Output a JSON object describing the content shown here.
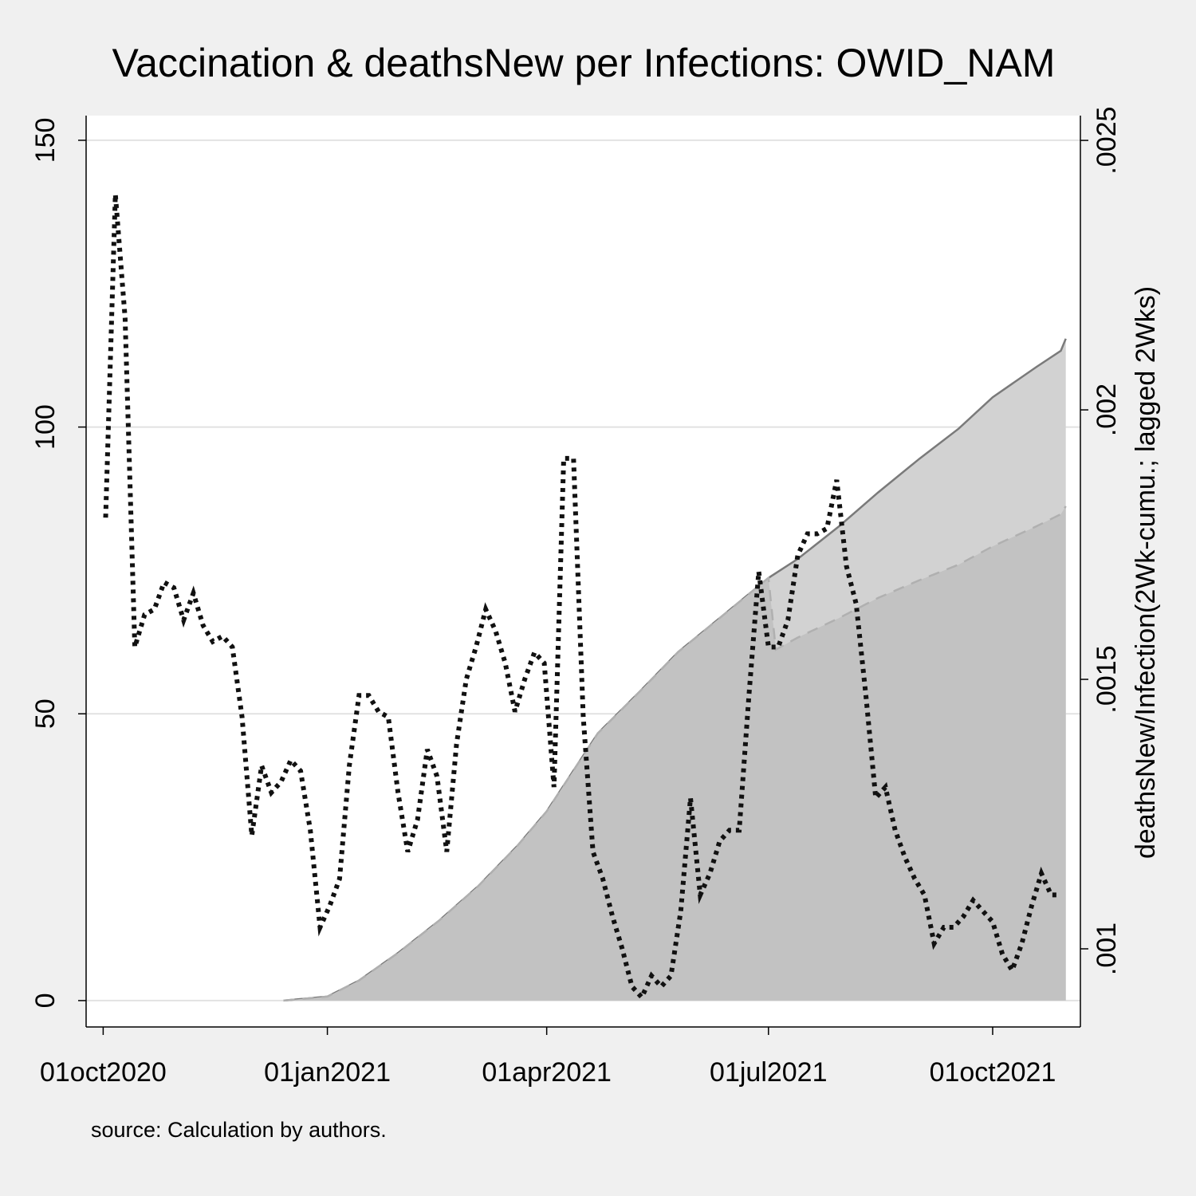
{
  "chart_data": {
    "type": "line",
    "title": "Vaccination & deathsNew per Infections: OWID_NAM",
    "y2_label": "deathsNew/Infection(2Wk-cumu.; lagged 2Wks)",
    "note": "source: Calculation by authors.",
    "xlim": [
      "2020-09-24",
      "2021-11-06"
    ],
    "xticks": [
      {
        "value": "2020-10-01",
        "label": "01oct2020"
      },
      {
        "value": "2021-01-01",
        "label": "01jan2021"
      },
      {
        "value": "2021-04-01",
        "label": "01apr2021"
      },
      {
        "value": "2021-07-01",
        "label": "01jul2021"
      },
      {
        "value": "2021-10-01",
        "label": "01oct2021"
      }
    ],
    "ylim": [
      -4.6,
      154.3
    ],
    "yticks": [
      0,
      50,
      100,
      150
    ],
    "y2lim": [
      0.000855,
      0.002546
    ],
    "y2ticks": [
      {
        "value": 0.001,
        "label": ".001"
      },
      {
        "value": 0.0015,
        "label": ".0015"
      },
      {
        "value": 0.002,
        "label": ".002"
      },
      {
        "value": 0.0025,
        "label": ".0025"
      }
    ],
    "grid": true,
    "series": [
      {
        "area": true,
        "fill": "#d2d2d2",
        "color": "#7a7a7a",
        "style": "solid",
        "x": [
          "2020-12-14",
          "2021-01-01",
          "2021-01-14",
          "2021-01-30",
          "2021-02-16",
          "2021-03-04",
          "2021-03-20",
          "2021-04-01",
          "2021-04-22",
          "2021-05-09",
          "2021-05-25",
          "2021-06-11",
          "2021-07-01",
          "2021-07-13",
          "2021-07-30",
          "2021-08-15",
          "2021-09-01",
          "2021-09-17",
          "2021-10-01",
          "2021-10-19",
          "2021-10-29",
          "2021-10-31"
        ],
        "values": [
          0,
          0.7,
          3.5,
          8.3,
          14,
          20,
          27,
          33,
          46.6,
          53.8,
          60.8,
          66.7,
          73.7,
          77,
          82.7,
          88.6,
          94.5,
          99.7,
          105.2,
          110.5,
          113.3,
          115.4
        ]
      },
      {
        "area": true,
        "fill": "#c2c2c2",
        "color": "#b0b0b0",
        "style": "dashed",
        "x": [
          "2020-12-14",
          "2021-01-01",
          "2021-01-14",
          "2021-01-30",
          "2021-02-16",
          "2021-03-04",
          "2021-03-20",
          "2021-04-01",
          "2021-04-22",
          "2021-05-09",
          "2021-05-25",
          "2021-06-11",
          "2021-07-01",
          "2021-07-04",
          "2021-07-13",
          "2021-07-30",
          "2021-08-15",
          "2021-09-01",
          "2021-09-17",
          "2021-10-01",
          "2021-10-19",
          "2021-10-29",
          "2021-10-31"
        ],
        "values": [
          0,
          0.7,
          3.5,
          8.3,
          14,
          20,
          27,
          33,
          46.6,
          53.8,
          60.8,
          66.7,
          73.7,
          61.2,
          63.3,
          66.7,
          70.2,
          73.3,
          76.0,
          79.2,
          82.7,
          84.8,
          86.2
        ]
      },
      {
        "area": false,
        "color": "#111111",
        "style": "dotted",
        "axis": "y2",
        "x": [
          "2020-10-02",
          "2020-10-06",
          "2020-10-10",
          "2020-10-14",
          "2020-10-18",
          "2020-10-22",
          "2020-10-26",
          "2020-10-30",
          "2020-11-03",
          "2020-11-07",
          "2020-11-11",
          "2020-11-15",
          "2020-11-19",
          "2020-11-23",
          "2020-11-27",
          "2020-12-01",
          "2020-12-05",
          "2020-12-09",
          "2020-12-13",
          "2020-12-17",
          "2020-12-21",
          "2020-12-25",
          "2020-12-29",
          "2021-01-02",
          "2021-01-06",
          "2021-01-10",
          "2021-01-14",
          "2021-01-18",
          "2021-01-22",
          "2021-01-26",
          "2021-01-30",
          "2021-02-03",
          "2021-02-07",
          "2021-02-11",
          "2021-02-15",
          "2021-02-19",
          "2021-02-23",
          "2021-02-27",
          "2021-03-03",
          "2021-03-07",
          "2021-03-11",
          "2021-03-15",
          "2021-03-19",
          "2021-03-23",
          "2021-03-27",
          "2021-03-31",
          "2021-04-04",
          "2021-04-08",
          "2021-04-12",
          "2021-04-16",
          "2021-04-20",
          "2021-04-24",
          "2021-04-28",
          "2021-05-02",
          "2021-05-06",
          "2021-05-10",
          "2021-05-14",
          "2021-05-18",
          "2021-05-22",
          "2021-05-26",
          "2021-05-30",
          "2021-06-03",
          "2021-06-07",
          "2021-06-11",
          "2021-06-15",
          "2021-06-19",
          "2021-06-23",
          "2021-06-27",
          "2021-07-01",
          "2021-07-05",
          "2021-07-09",
          "2021-07-13",
          "2021-07-17",
          "2021-07-21",
          "2021-07-25",
          "2021-07-29",
          "2021-08-02",
          "2021-08-06",
          "2021-08-10",
          "2021-08-14",
          "2021-08-18",
          "2021-08-22",
          "2021-08-26",
          "2021-08-30",
          "2021-09-03",
          "2021-09-07",
          "2021-09-11",
          "2021-09-15",
          "2021-09-19",
          "2021-09-23",
          "2021-09-27",
          "2021-10-01",
          "2021-10-05",
          "2021-10-09",
          "2021-10-13",
          "2021-10-17",
          "2021-10-21",
          "2021-10-25",
          "2021-10-29"
        ],
        "values": [
          0.0018,
          0.0024,
          0.00217,
          0.00156,
          0.00162,
          0.00163,
          0.00168,
          0.00167,
          0.00161,
          0.00166,
          0.0016,
          0.00157,
          0.00158,
          0.00156,
          0.00143,
          0.00121,
          0.00134,
          0.00129,
          0.00131,
          0.00135,
          0.00133,
          0.00122,
          0.00104,
          0.00108,
          0.00113,
          0.00134,
          0.00147,
          0.00147,
          0.00144,
          0.00143,
          0.00129,
          0.00118,
          0.00124,
          0.00137,
          0.00132,
          0.00118,
          0.00138,
          0.0015,
          0.00156,
          0.00163,
          0.00159,
          0.00153,
          0.00144,
          0.0015,
          0.00155,
          0.00153,
          0.0013,
          0.00191,
          0.00191,
          0.00143,
          0.00118,
          0.00113,
          0.00106,
          0.001,
          0.00093,
          0.00091,
          0.00095,
          0.00093,
          0.00095,
          0.00107,
          0.00128,
          0.0011,
          0.00114,
          0.0012,
          0.00122,
          0.00122,
          0.00147,
          0.0017,
          0.00156,
          0.00156,
          0.00161,
          0.00173,
          0.00177,
          0.00177,
          0.00178,
          0.00187,
          0.00171,
          0.00164,
          0.00147,
          0.00128,
          0.0013,
          0.00122,
          0.00117,
          0.00113,
          0.0011,
          0.00101,
          0.00104,
          0.00104,
          0.00106,
          0.00109,
          0.00107,
          0.00105,
          0.00099,
          0.00096,
          0.00101,
          0.00108,
          0.00114,
          0.0011,
          0.0011
        ]
      }
    ]
  }
}
